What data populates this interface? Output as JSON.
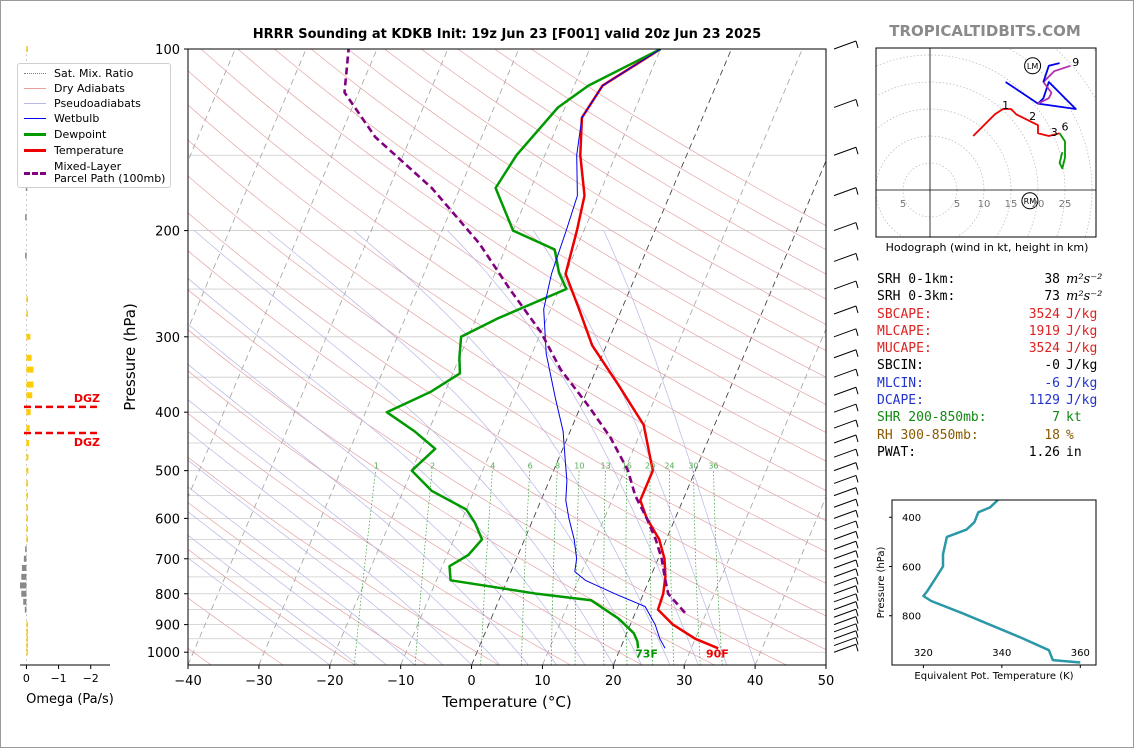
{
  "title": "HRRR Sounding at KDKB Init: 19z Jun 23 [F001] valid 20z Jun 23 2025",
  "credit": "TROPICALTIDBITS.COM",
  "legend": [
    {
      "label": "Sat. Mix. Ratio",
      "color": "#7a7a7a",
      "style": "dotted"
    },
    {
      "label": "Dry Adiabats",
      "color": "#e8a0a0",
      "style": "solid"
    },
    {
      "label": "Pseudoadiabats",
      "color": "#b7b7e6",
      "style": "solid"
    },
    {
      "label": "Wetbulb",
      "color": "#0000ee",
      "style": "solid"
    },
    {
      "label": "Dewpoint",
      "color": "#009900",
      "style": "thick"
    },
    {
      "label": "Temperature",
      "color": "#ee0000",
      "style": "thick"
    },
    {
      "label": "Mixed-Layer\nParcel Path (100mb)",
      "color": "#800080",
      "style": "dashed"
    }
  ],
  "chart_data": [
    {
      "type": "line",
      "name": "skew-t",
      "xlabel": "Temperature (°C)",
      "ylabel": "Pressure (hPa)",
      "xlim": [
        -40,
        50
      ],
      "ylim": [
        1050,
        100
      ],
      "y_scale": "log",
      "x_ticks": [
        "−40",
        "−30",
        "−20",
        "−10",
        "0",
        "10",
        "20",
        "30",
        "40",
        "50"
      ],
      "y_ticks": [
        100,
        200,
        300,
        400,
        500,
        600,
        700,
        800,
        900,
        1000
      ],
      "series": [
        {
          "name": "Temperature",
          "color": "#ee0000",
          "points": [
            [
              33.8,
              985
            ],
            [
              30,
              950
            ],
            [
              26,
              900
            ],
            [
              23,
              850
            ],
            [
              22.8,
              800
            ],
            [
              22.1,
              750
            ],
            [
              20.9,
              700
            ],
            [
              19,
              650
            ],
            [
              16,
              600
            ],
            [
              14,
              560
            ],
            [
              14,
              500
            ],
            [
              10,
              420
            ],
            [
              4,
              360
            ],
            [
              -2,
              310
            ],
            [
              -6,
              270
            ],
            [
              -10,
              236
            ],
            [
              -11,
              200
            ],
            [
              -12,
              175
            ],
            [
              -15,
              150
            ],
            [
              -17,
              130
            ],
            [
              -16,
              115
            ],
            [
              -10,
              100
            ]
          ]
        },
        {
          "name": "Dewpoint",
          "color": "#009900",
          "points": [
            [
              22.5,
              985
            ],
            [
              22,
              960
            ],
            [
              21,
              930
            ],
            [
              18,
              880
            ],
            [
              13,
              820
            ],
            [
              5,
              800
            ],
            [
              -8,
              760
            ],
            [
              -9,
              720
            ],
            [
              -7,
              690
            ],
            [
              -6,
              650
            ],
            [
              -8,
              610
            ],
            [
              -10,
              580
            ],
            [
              -16,
              540
            ],
            [
              -20,
              500
            ],
            [
              -18,
              460
            ],
            [
              -22,
              430
            ],
            [
              -27,
              400
            ],
            [
              -22,
              370
            ],
            [
              -19,
              345
            ],
            [
              -20,
              325
            ],
            [
              -21,
              300
            ],
            [
              -17,
              280
            ],
            [
              -9,
              250
            ],
            [
              -11,
              235
            ],
            [
              -13,
              215
            ],
            [
              -20,
              200
            ],
            [
              -25,
              170
            ],
            [
              -24,
              150
            ],
            [
              -21,
              125
            ],
            [
              -18,
              115
            ],
            [
              -10,
              100
            ]
          ]
        },
        {
          "name": "Wetbulb",
          "color": "#0000ee",
          "points": [
            [
              26.3,
              985
            ],
            [
              25,
              950
            ],
            [
              23.5,
              900
            ],
            [
              21,
              840
            ],
            [
              16,
              800
            ],
            [
              11,
              760
            ],
            [
              9,
              735
            ],
            [
              8.5,
              700
            ],
            [
              7,
              650
            ],
            [
              5,
              600
            ],
            [
              3.5,
              560
            ],
            [
              2.5,
              520
            ],
            [
              1,
              480
            ],
            [
              -1,
              430
            ],
            [
              -4,
              380
            ],
            [
              -8,
              320
            ],
            [
              -11,
              270
            ],
            [
              -12,
              236
            ],
            [
              -12.5,
              200
            ],
            [
              -13,
              175
            ],
            [
              -15.5,
              150
            ],
            [
              -17,
              130
            ],
            [
              -16,
              115
            ],
            [
              -10,
              100
            ]
          ]
        },
        {
          "name": "Mixed-Layer Parcel Path (100mb)",
          "color": "#800080",
          "style": "dashed",
          "points": [
            [
              27,
              860
            ],
            [
              23.5,
              800
            ],
            [
              22,
              750
            ],
            [
              20.5,
              700
            ],
            [
              18.5,
              650
            ],
            [
              16,
              600
            ],
            [
              13,
              550
            ],
            [
              10.5,
              500
            ],
            [
              6,
              440
            ],
            [
              1,
              390
            ],
            [
              -5,
              340
            ],
            [
              -10,
              295
            ],
            [
              -17,
              250
            ],
            [
              -24,
              210
            ],
            [
              -34,
              170
            ],
            [
              -45,
              140
            ],
            [
              -52,
              118
            ],
            [
              -54,
              100
            ]
          ]
        }
      ],
      "annotations": [
        {
          "text": "73F",
          "color": "#009900",
          "t": 24,
          "p": 1005
        },
        {
          "text": "90F",
          "color": "#ee0000",
          "t": 34,
          "p": 1005
        }
      ],
      "mixing_ratio_labels": [
        "1",
        "2",
        "4",
        "6",
        "8",
        "10",
        "13",
        "16",
        "20",
        "24",
        "30",
        "36"
      ]
    },
    {
      "type": "bar",
      "name": "omega",
      "xlabel": "Omega (Pa/s)",
      "xlim": [
        0.2,
        -2.6
      ],
      "x_ticks": [
        "0",
        "−1",
        "−2"
      ],
      "dgz_label": "DGZ",
      "dgz_pressures": [
        392,
        433
      ],
      "bars": [
        {
          "p": 100,
          "v": -0.02
        },
        {
          "p": 170,
          "v": 0.02
        },
        {
          "p": 190,
          "v": 0.04
        },
        {
          "p": 220,
          "v": 0.04
        },
        {
          "p": 260,
          "v": -0.03
        },
        {
          "p": 275,
          "v": -0.04
        },
        {
          "p": 300,
          "v": -0.12
        },
        {
          "p": 325,
          "v": -0.16
        },
        {
          "p": 340,
          "v": -0.22
        },
        {
          "p": 360,
          "v": -0.22
        },
        {
          "p": 375,
          "v": -0.18
        },
        {
          "p": 400,
          "v": -0.13
        },
        {
          "p": 425,
          "v": -0.1
        },
        {
          "p": 450,
          "v": -0.08
        },
        {
          "p": 475,
          "v": -0.06
        },
        {
          "p": 500,
          "v": -0.06
        },
        {
          "p": 525,
          "v": -0.05
        },
        {
          "p": 550,
          "v": -0.05
        },
        {
          "p": 575,
          "v": -0.05
        },
        {
          "p": 600,
          "v": -0.05
        },
        {
          "p": 625,
          "v": -0.04
        },
        {
          "p": 650,
          "v": -0.04
        },
        {
          "p": 675,
          "v": 0.04
        },
        {
          "p": 700,
          "v": 0.08
        },
        {
          "p": 725,
          "v": 0.14
        },
        {
          "p": 750,
          "v": 0.16
        },
        {
          "p": 775,
          "v": 0.2
        },
        {
          "p": 800,
          "v": 0.16
        },
        {
          "p": 825,
          "v": 0.1
        },
        {
          "p": 850,
          "v": 0.05
        },
        {
          "p": 900,
          "v": -0.04
        },
        {
          "p": 925,
          "v": -0.05
        },
        {
          "p": 950,
          "v": -0.05
        },
        {
          "p": 975,
          "v": -0.04
        },
        {
          "p": 1000,
          "v": -0.04
        }
      ]
    },
    {
      "type": "line",
      "name": "hodograph",
      "caption": "Hodograph (wind in kt, height in km)",
      "ring_labels": [
        "5",
        "5",
        "10",
        "15",
        "20",
        "25"
      ],
      "markers": [
        "LM",
        "RM"
      ],
      "height_labels": [
        "1",
        "2",
        "3",
        "6",
        "9"
      ],
      "segments": [
        {
          "color": "#ee0000",
          "points": [
            [
              8,
              10
            ],
            [
              12,
              14
            ],
            [
              13.5,
              15
            ],
            [
              15,
              15
            ],
            [
              16,
              14
            ],
            [
              18,
              13
            ],
            [
              20,
              12
            ],
            [
              20,
              10.5
            ],
            [
              22,
              10
            ],
            [
              24,
              10.5
            ]
          ]
        },
        {
          "color": "#009900",
          "points": [
            [
              24,
              10.5
            ],
            [
              25,
              9
            ],
            [
              25,
              6
            ],
            [
              24.5,
              4
            ],
            [
              24,
              5
            ],
            [
              24.5,
              7
            ]
          ]
        },
        {
          "color": "#0000ee",
          "points": [
            [
              14,
              20
            ],
            [
              20,
              16
            ],
            [
              27,
              15
            ],
            [
              22,
              20
            ],
            [
              21,
              17
            ],
            [
              20,
              16
            ]
          ]
        },
        {
          "color": "#b030b0",
          "points": [
            [
              20,
              16
            ],
            [
              22,
              17
            ],
            [
              22.5,
              18
            ],
            [
              21,
              20
            ],
            [
              23,
              22
            ],
            [
              26,
              23
            ]
          ]
        },
        {
          "color": "#0000ee",
          "points": [
            [
              21,
              20
            ],
            [
              22,
              23
            ],
            [
              24,
              23.5
            ]
          ]
        }
      ],
      "lm": [
        19,
        23
      ],
      "rm": [
        18.5,
        -2
      ]
    },
    {
      "type": "line",
      "name": "theta-e",
      "xlabel": "Equivalent Pot. Temperature (K)",
      "ylabel": "Pressure (hPa)",
      "x_ticks": [
        "320",
        "340",
        "360"
      ],
      "y_ticks": [
        "400",
        "600",
        "800"
      ],
      "series": [
        {
          "name": "Theta-E",
          "color": "#2a98a8",
          "points": [
            [
              339,
              330
            ],
            [
              337,
              360
            ],
            [
              334,
              380
            ],
            [
              333,
              420
            ],
            [
              331,
              450
            ],
            [
              326,
              480
            ],
            [
              325,
              550
            ],
            [
              325,
              600
            ],
            [
              323,
              650
            ],
            [
              321,
              700
            ],
            [
              320,
              720
            ],
            [
              322,
              740
            ],
            [
              330,
              790
            ],
            [
              345,
              890
            ],
            [
              352,
              940
            ],
            [
              353,
              980
            ],
            [
              360,
              990
            ]
          ]
        }
      ]
    }
  ],
  "stats": [
    {
      "label": "SRH 0-1km:",
      "value": "38",
      "unit": "m²s⁻²",
      "color": "#000000"
    },
    {
      "label": "SRH 0-3km:",
      "value": "73",
      "unit": "m²s⁻²",
      "color": "#000000"
    },
    {
      "label": "SBCAPE:",
      "value": "3524",
      "unit": "J/kg",
      "color": "#dd2222"
    },
    {
      "label": "MLCAPE:",
      "value": "1919",
      "unit": "J/kg",
      "color": "#dd2222"
    },
    {
      "label": "MUCAPE:",
      "value": "3524",
      "unit": "J/kg",
      "color": "#dd2222"
    },
    {
      "label": "SBCIN:",
      "value": "-0",
      "unit": "J/kg",
      "color": "#000000"
    },
    {
      "label": "MLCIN:",
      "value": "-6",
      "unit": "J/kg",
      "color": "#2233cc"
    },
    {
      "label": "DCAPE:",
      "value": "1129",
      "unit": "J/kg",
      "color": "#2233cc"
    },
    {
      "label": "SHR 200-850mb:",
      "value": "7",
      "unit": "kt",
      "color": "#118811"
    },
    {
      "label": "RH 300-850mb:",
      "value": "18",
      "unit": "%",
      "color": "#8a5a00"
    },
    {
      "label": "PWAT:",
      "value": "1.26",
      "unit": "in",
      "color": "#000000"
    }
  ]
}
